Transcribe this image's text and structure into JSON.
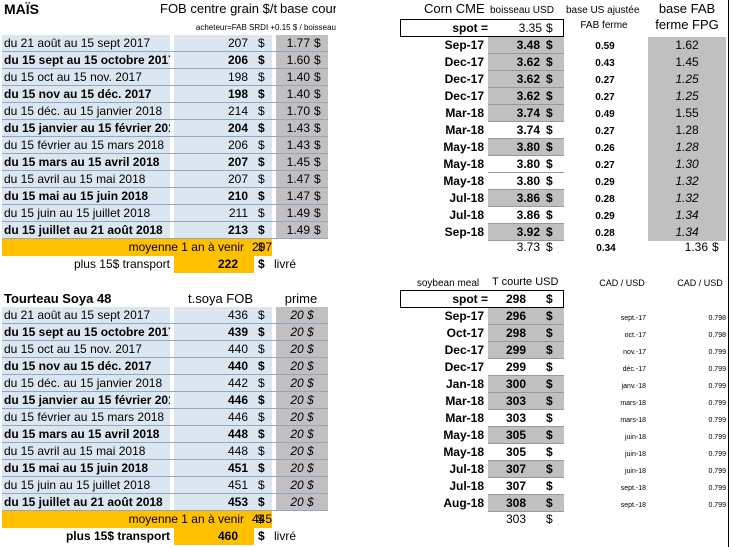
{
  "colors": {
    "blue": "#dce6f1",
    "grey": "#c0c0c0",
    "yellow": "#ffc000"
  },
  "mais": {
    "title": "MAÏS",
    "header_fob": "FOB centre grain $/t",
    "header_base": "base cour",
    "note": "acheteur=FAB SRDI +0.15 $ / boisseau",
    "rows": [
      {
        "period": "du 21 août au 15 sept 2017",
        "fob": "207",
        "base": "1.77"
      },
      {
        "period": "du 15 sept au 15 octobre 2017",
        "fob": "206",
        "base": "1.60"
      },
      {
        "period": "du 15 oct au 15 nov. 2017",
        "fob": "198",
        "base": "1.40"
      },
      {
        "period": "du 15 nov au 15 déc. 2017",
        "fob": "198",
        "base": "1.40"
      },
      {
        "period": "du 15 déc. au 15 janvier 2018",
        "fob": "214",
        "base": "1.70"
      },
      {
        "period": "du 15 janvier au 15 février 2018",
        "fob": "204",
        "base": "1.43"
      },
      {
        "period": "du 15 février au 15 mars 2018",
        "fob": "206",
        "base": "1.43"
      },
      {
        "period": "du 15 mars au 15 avril 2018",
        "fob": "207",
        "base": "1.45"
      },
      {
        "period": "du 15 avril au 15 mai 2018",
        "fob": "207",
        "base": "1.47"
      },
      {
        "period": "du 15 mai au 15 juin 2018",
        "fob": "210",
        "base": "1.47"
      },
      {
        "period": "du 15 juin au 15 juillet 2018",
        "fob": "211",
        "base": "1.49"
      },
      {
        "period": "du 15 juillet au 21 août 2018",
        "fob": "213",
        "base": "1.49"
      }
    ],
    "avg_label": "moyenne 1 an à venir",
    "avg_value": "207",
    "plus_label": "plus 15$  transport",
    "plus_value": "222",
    "livre": "livré",
    "dollar": "$"
  },
  "corn": {
    "title": "Corn CME",
    "h_boisseau": "boisseau USD",
    "h_base_us": "base US ajustée",
    "h_fab_ferme": "FAB ferme",
    "h_base_fab": "base FAB",
    "h_ferme_fpg": "ferme FPG",
    "spot_label": "spot =",
    "spot_value": "3.35",
    "rows": [
      {
        "month": "Sep-17",
        "price": "3.48",
        "base_us": "0.59",
        "fab": "1.62"
      },
      {
        "month": "Dec-17",
        "price": "3.62",
        "base_us": "0.43",
        "fab": "1.45"
      },
      {
        "month": "Dec-17",
        "price": "3.62",
        "base_us": "0.27",
        "fab": "1.25"
      },
      {
        "month": "Dec-17",
        "price": "3.62",
        "base_us": "0.27",
        "fab": "1.25"
      },
      {
        "month": "Mar-18",
        "price": "3.74",
        "base_us": "0.49",
        "fab": "1.55"
      },
      {
        "month": "Mar-18",
        "price": "3.74",
        "base_us": "0.27",
        "fab": "1.28"
      },
      {
        "month": "May-18",
        "price": "3.80",
        "base_us": "0.26",
        "fab": "1.28"
      },
      {
        "month": "May-18",
        "price": "3.80",
        "base_us": "0.27",
        "fab": "1.30"
      },
      {
        "month": "May-18",
        "price": "3.80",
        "base_us": "0.29",
        "fab": "1.32"
      },
      {
        "month": "Jul-18",
        "price": "3.86",
        "base_us": "0.28",
        "fab": "1.32"
      },
      {
        "month": "Jul-18",
        "price": "3.86",
        "base_us": "0.29",
        "fab": "1.34"
      },
      {
        "month": "Sep-18",
        "price": "3.92",
        "base_us": "0.28",
        "fab": "1.34"
      }
    ],
    "avg_price": "3.73",
    "avg_base_us": "0.34",
    "avg_fab": "1.36"
  },
  "soya": {
    "title": "Tourteau Soya 48",
    "header_fob": "t.soya FOB",
    "header_prime": "prime",
    "rows": [
      {
        "period": "du 21 août au 15 sept 2017",
        "fob": "436",
        "prime": "20 $"
      },
      {
        "period": "du 15 sept au 15 octobre 2017",
        "fob": "439",
        "prime": "20 $"
      },
      {
        "period": "du 15 oct au 15 nov. 2017",
        "fob": "440",
        "prime": "20 $"
      },
      {
        "period": "du 15 nov au 15 déc. 2017",
        "fob": "440",
        "prime": "20 $"
      },
      {
        "period": "du 15 déc. au 15 janvier 2018",
        "fob": "442",
        "prime": "20 $"
      },
      {
        "period": "du 15 janvier au 15 février 2018",
        "fob": "446",
        "prime": "20 $"
      },
      {
        "period": "du 15 février au 15 mars 2018",
        "fob": "446",
        "prime": "20 $"
      },
      {
        "period": "du 15 mars au 15 avril 2018",
        "fob": "448",
        "prime": "20 $"
      },
      {
        "period": "du 15 avril au 15 mai 2018",
        "fob": "448",
        "prime": "20 $"
      },
      {
        "period": "du 15 mai au 15 juin 2018",
        "fob": "451",
        "prime": "20 $"
      },
      {
        "period": "du 15 juin au 15 juillet 2018",
        "fob": "451",
        "prime": "20 $"
      },
      {
        "period": "du 15 juillet au 21 août 2018",
        "fob": "453",
        "prime": "20 $"
      }
    ],
    "avg_label": "moyenne 1 an à venir",
    "avg_value": "445",
    "plus_label": "plus 15$  transport",
    "plus_value": "460",
    "livre": "livré"
  },
  "meal": {
    "title": "soybean meal",
    "h_tcourte": "T courte USD",
    "h_cad1": "CAD / USD",
    "h_cad2": "CAD / USD",
    "spot_label": "spot =",
    "spot_value": "298",
    "rows": [
      {
        "month": "Sep-17",
        "price": "296",
        "d1": "sept.-17",
        "r": "0.798"
      },
      {
        "month": "Oct-17",
        "price": "298",
        "d1": "oct.-17",
        "r": "0.798"
      },
      {
        "month": "Dec-17",
        "price": "299",
        "d1": "nov.-17",
        "r": "0.799"
      },
      {
        "month": "Dec-17",
        "price": "299",
        "d1": "déc.-17",
        "r": "0.799"
      },
      {
        "month": "Jan-18",
        "price": "300",
        "d1": "janv.-18",
        "r": "0.799"
      },
      {
        "month": "Mar-18",
        "price": "303",
        "d1": "mars-18",
        "r": "0.799"
      },
      {
        "month": "Mar-18",
        "price": "303",
        "d1": "mars-18",
        "r": "0.799"
      },
      {
        "month": "May-18",
        "price": "305",
        "d1": "juin-18",
        "r": "0.799"
      },
      {
        "month": "May-18",
        "price": "305",
        "d1": "juin-18",
        "r": "0.799"
      },
      {
        "month": "Jul-18",
        "price": "307",
        "d1": "juin-18",
        "r": "0.799"
      },
      {
        "month": "Jul-18",
        "price": "307",
        "d1": "sept.-18",
        "r": "0.799"
      },
      {
        "month": "Aug-18",
        "price": "308",
        "d1": "sept.-18",
        "r": "0.799"
      }
    ],
    "avg_price": "303"
  }
}
